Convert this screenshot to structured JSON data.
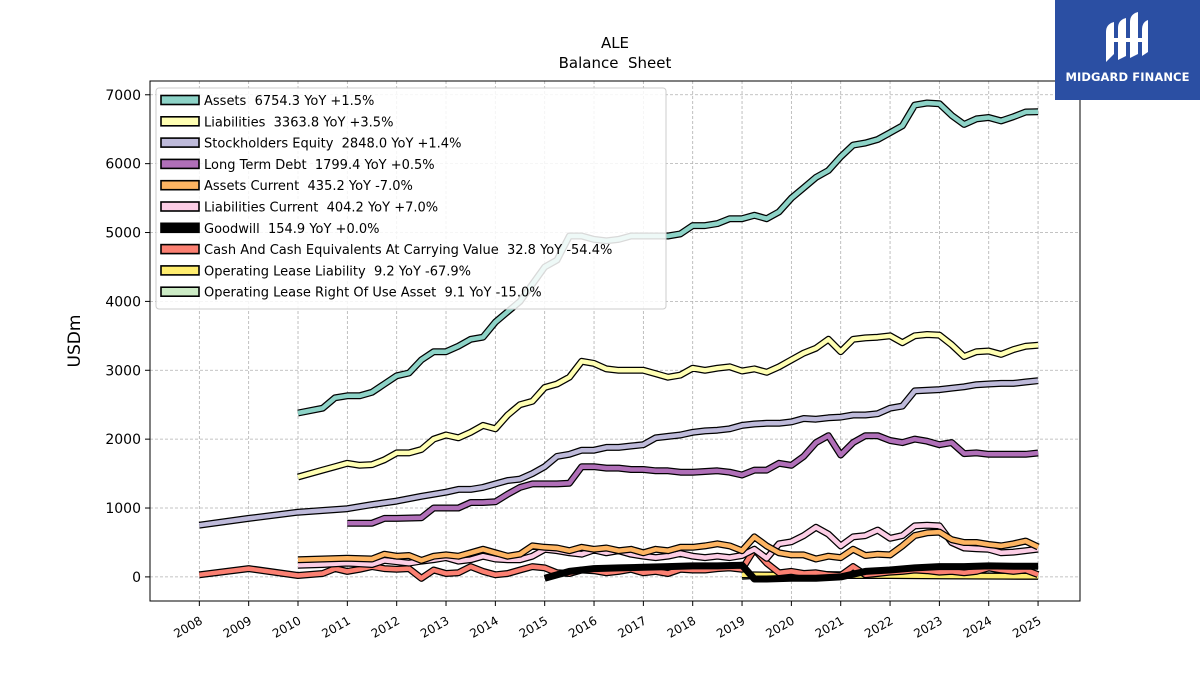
{
  "brand": {
    "name": "MIDGARD FINANCE"
  },
  "chart_data": {
    "type": "line",
    "title": "ALE",
    "subtitle": "Balance  Sheet",
    "xlabel": "",
    "ylabel": "USDm",
    "xlim": [
      2007.0,
      2025.85
    ],
    "ylim": [
      -350,
      7200
    ],
    "x_ticks": [
      "2008",
      "2009",
      "2010",
      "2011",
      "2012",
      "2013",
      "2014",
      "2015",
      "2016",
      "2017",
      "2018",
      "2019",
      "2020",
      "2021",
      "2022",
      "2023",
      "2024",
      "2025"
    ],
    "y_ticks": [
      "0",
      "1000",
      "2000",
      "3000",
      "4000",
      "5000",
      "6000",
      "7000"
    ],
    "grid": true,
    "legend_position": "top-left",
    "series": [
      {
        "name": "Assets  6754.3 YoY +1.5%",
        "color": "#8dd3c7",
        "x": [
          2010.0,
          2010.5,
          2010.75,
          2011.0,
          2011.25,
          2011.5,
          2011.75,
          2012.0,
          2012.25,
          2012.5,
          2012.75,
          2013.0,
          2013.25,
          2013.5,
          2013.75,
          2014.0,
          2014.25,
          2014.5,
          2014.75,
          2015.0,
          2015.25,
          2015.5,
          2015.75,
          2016.0,
          2016.25,
          2016.5,
          2016.75,
          2017.0,
          2017.25,
          2017.5,
          2017.75,
          2018.0,
          2018.25,
          2018.5,
          2018.75,
          2019.0,
          2019.25,
          2019.5,
          2019.75,
          2020.0,
          2020.25,
          2020.5,
          2020.75,
          2021.0,
          2021.25,
          2021.5,
          2021.75,
          2022.0,
          2022.25,
          2022.5,
          2022.75,
          2023.0,
          2023.25,
          2023.5,
          2023.75,
          2024.0,
          2024.25,
          2024.5,
          2024.75,
          2025.0
        ],
        "y": [
          2380,
          2450,
          2600,
          2630,
          2630,
          2680,
          2800,
          2920,
          2960,
          3150,
          3270,
          3270,
          3350,
          3450,
          3480,
          3700,
          3850,
          4000,
          4250,
          4500,
          4600,
          4950,
          4950,
          4900,
          4880,
          4900,
          4950,
          4950,
          4950,
          4950,
          4980,
          5100,
          5100,
          5130,
          5200,
          5200,
          5250,
          5200,
          5300,
          5500,
          5650,
          5800,
          5900,
          6100,
          6270,
          6300,
          6350,
          6450,
          6550,
          6850,
          6880,
          6870,
          6700,
          6570,
          6650,
          6670,
          6620,
          6680,
          6750,
          6754
        ]
      },
      {
        "name": "Liabilities  3363.8 YoY +3.5%",
        "color": "#ffffb3",
        "x": [
          2010.0,
          2010.5,
          2010.75,
          2011.0,
          2011.25,
          2011.5,
          2011.75,
          2012.0,
          2012.25,
          2012.5,
          2012.75,
          2013.0,
          2013.25,
          2013.5,
          2013.75,
          2014.0,
          2014.25,
          2014.5,
          2014.75,
          2015.0,
          2015.25,
          2015.5,
          2015.75,
          2016.0,
          2016.25,
          2016.5,
          2016.75,
          2017.0,
          2017.25,
          2017.5,
          2017.75,
          2018.0,
          2018.25,
          2018.5,
          2018.75,
          2019.0,
          2019.25,
          2019.5,
          2019.75,
          2020.0,
          2020.25,
          2020.5,
          2020.75,
          2021.0,
          2021.25,
          2021.5,
          2021.75,
          2022.0,
          2022.25,
          2022.5,
          2022.75,
          2023.0,
          2023.25,
          2023.5,
          2023.75,
          2024.0,
          2024.25,
          2024.5,
          2024.75,
          2025.0
        ],
        "y": [
          1450,
          1550,
          1600,
          1650,
          1620,
          1630,
          1700,
          1800,
          1800,
          1850,
          2000,
          2060,
          2020,
          2100,
          2200,
          2150,
          2350,
          2500,
          2550,
          2750,
          2800,
          2900,
          3130,
          3100,
          3020,
          3000,
          3000,
          3000,
          2950,
          2900,
          2930,
          3030,
          3000,
          3030,
          3050,
          2990,
          3020,
          2970,
          3050,
          3150,
          3250,
          3320,
          3450,
          3270,
          3450,
          3470,
          3480,
          3500,
          3400,
          3500,
          3520,
          3510,
          3370,
          3200,
          3270,
          3280,
          3230,
          3300,
          3350,
          3364
        ]
      },
      {
        "name": "Stockholders Equity  2848.0 YoY +1.4%",
        "color": "#bebada",
        "x": [
          2008.0,
          2009.0,
          2010.0,
          2011.0,
          2011.5,
          2012.0,
          2012.5,
          2013.0,
          2013.25,
          2013.5,
          2013.75,
          2014.0,
          2014.25,
          2014.5,
          2014.75,
          2015.0,
          2015.25,
          2015.5,
          2015.75,
          2016.0,
          2016.25,
          2016.5,
          2016.75,
          2017.0,
          2017.25,
          2017.5,
          2017.75,
          2018.0,
          2018.25,
          2018.5,
          2018.75,
          2019.0,
          2019.25,
          2019.5,
          2019.75,
          2020.0,
          2020.25,
          2020.5,
          2020.75,
          2021.0,
          2021.25,
          2021.5,
          2021.75,
          2022.0,
          2022.25,
          2022.5,
          2022.75,
          2023.0,
          2023.25,
          2023.5,
          2023.75,
          2024.0,
          2024.25,
          2024.5,
          2024.75,
          2025.0
        ],
        "y": [
          750,
          850,
          940,
          990,
          1050,
          1100,
          1170,
          1230,
          1270,
          1270,
          1300,
          1350,
          1400,
          1420,
          1500,
          1600,
          1750,
          1780,
          1840,
          1840,
          1880,
          1880,
          1900,
          1920,
          2020,
          2040,
          2060,
          2100,
          2120,
          2130,
          2150,
          2200,
          2220,
          2230,
          2230,
          2250,
          2300,
          2290,
          2310,
          2320,
          2350,
          2350,
          2370,
          2450,
          2480,
          2700,
          2710,
          2720,
          2740,
          2760,
          2790,
          2800,
          2810,
          2810,
          2830,
          2848
        ]
      },
      {
        "name": "Long Term Debt  1799.4 YoY +0.5%",
        "color": "#b06fb8",
        "x": [
          2011.0,
          2011.5,
          2011.75,
          2012.0,
          2012.5,
          2012.75,
          2013.0,
          2013.25,
          2013.5,
          2013.75,
          2014.0,
          2014.25,
          2014.5,
          2014.75,
          2015.0,
          2015.25,
          2015.5,
          2015.75,
          2016.0,
          2016.25,
          2016.5,
          2016.75,
          2017.0,
          2017.25,
          2017.5,
          2017.75,
          2018.0,
          2018.25,
          2018.5,
          2018.75,
          2019.0,
          2019.25,
          2019.5,
          2019.75,
          2020.0,
          2020.25,
          2020.5,
          2020.75,
          2021.0,
          2021.25,
          2021.5,
          2021.75,
          2022.0,
          2022.25,
          2022.5,
          2022.75,
          2023.0,
          2023.25,
          2023.5,
          2023.75,
          2024.0,
          2024.25,
          2024.5,
          2024.75,
          2025.0
        ],
        "y": [
          780,
          780,
          850,
          850,
          860,
          1000,
          1000,
          1000,
          1080,
          1080,
          1090,
          1200,
          1300,
          1350,
          1350,
          1350,
          1360,
          1600,
          1600,
          1580,
          1580,
          1560,
          1560,
          1540,
          1540,
          1520,
          1520,
          1530,
          1540,
          1520,
          1480,
          1550,
          1550,
          1650,
          1620,
          1750,
          1950,
          2050,
          1770,
          1950,
          2050,
          2050,
          1980,
          1950,
          2000,
          1970,
          1920,
          1950,
          1790,
          1800,
          1780,
          1780,
          1780,
          1780,
          1799
        ]
      },
      {
        "name": "Assets Current  435.2 YoY -7.0%",
        "color": "#fdb462",
        "x": [
          2010.0,
          2011.0,
          2011.5,
          2011.75,
          2012.0,
          2012.25,
          2012.5,
          2012.75,
          2013.0,
          2013.25,
          2013.5,
          2013.75,
          2014.0,
          2014.25,
          2014.5,
          2014.75,
          2015.0,
          2015.25,
          2015.5,
          2015.75,
          2016.0,
          2016.25,
          2016.5,
          2016.75,
          2017.0,
          2017.25,
          2017.5,
          2017.75,
          2018.0,
          2018.25,
          2018.5,
          2018.75,
          2019.0,
          2019.25,
          2019.5,
          2019.75,
          2020.0,
          2020.25,
          2020.5,
          2020.75,
          2021.0,
          2021.25,
          2021.5,
          2021.75,
          2022.0,
          2022.25,
          2022.5,
          2022.75,
          2023.0,
          2023.25,
          2023.5,
          2023.75,
          2024.0,
          2024.25,
          2024.5,
          2024.75,
          2025.0
        ],
        "y": [
          250,
          270,
          260,
          330,
          300,
          310,
          240,
          300,
          320,
          300,
          350,
          400,
          350,
          300,
          330,
          450,
          430,
          420,
          380,
          430,
          400,
          420,
          380,
          400,
          350,
          400,
          380,
          430,
          430,
          450,
          480,
          450,
          380,
          580,
          450,
          350,
          320,
          320,
          260,
          300,
          280,
          400,
          310,
          330,
          320,
          450,
          600,
          640,
          650,
          540,
          500,
          500,
          470,
          450,
          480,
          520,
          435
        ]
      },
      {
        "name": "Liabilities Current  404.2 YoY +7.0%",
        "color": "#fccde5",
        "x": [
          2010.0,
          2010.5,
          2011.0,
          2011.5,
          2011.75,
          2012.0,
          2012.25,
          2012.5,
          2012.75,
          2013.0,
          2013.25,
          2013.5,
          2013.75,
          2014.0,
          2014.25,
          2014.5,
          2014.75,
          2015.0,
          2015.25,
          2015.5,
          2015.75,
          2016.0,
          2016.25,
          2016.5,
          2016.75,
          2017.0,
          2017.25,
          2017.5,
          2017.75,
          2018.0,
          2018.25,
          2018.5,
          2018.75,
          2019.0,
          2019.25,
          2019.5,
          2019.75,
          2020.0,
          2020.25,
          2020.5,
          2020.75,
          2021.0,
          2021.25,
          2021.5,
          2021.75,
          2022.0,
          2022.25,
          2022.5,
          2022.75,
          2023.0,
          2023.25,
          2023.5,
          2023.75,
          2024.0,
          2024.25,
          2024.5,
          2024.75,
          2025.0
        ],
        "y": [
          170,
          180,
          200,
          180,
          240,
          220,
          200,
          230,
          250,
          280,
          230,
          250,
          300,
          260,
          250,
          250,
          300,
          400,
          380,
          350,
          330,
          390,
          350,
          380,
          330,
          300,
          280,
          300,
          340,
          300,
          280,
          300,
          280,
          310,
          400,
          270,
          480,
          510,
          600,
          720,
          620,
          450,
          580,
          600,
          680,
          560,
          600,
          740,
          750,
          740,
          500,
          420,
          410,
          400,
          350,
          360,
          380,
          404
        ]
      },
      {
        "name": "Goodwill  154.9 YoY +0.0%",
        "color": "#000000",
        "x": [
          2015.0,
          2015.5,
          2016.0,
          2016.5,
          2017.0,
          2017.5,
          2018.0,
          2018.5,
          2019.0,
          2019.25,
          2019.5,
          2020.0,
          2020.5,
          2021.0,
          2021.5,
          2022.0,
          2022.5,
          2023.0,
          2023.5,
          2024.0,
          2024.5,
          2025.0
        ],
        "y": [
          -20,
          80,
          120,
          130,
          140,
          150,
          160,
          160,
          170,
          -30,
          -30,
          -20,
          -20,
          0,
          80,
          100,
          130,
          150,
          150,
          160,
          155,
          155
        ]
      },
      {
        "name": "Cash And Cash Equivalents At Carrying Value  32.8 YoY -54.4%",
        "color": "#fb8072",
        "x": [
          2008.0,
          2009.0,
          2010.0,
          2010.5,
          2010.75,
          2011.0,
          2011.25,
          2011.5,
          2011.75,
          2012.0,
          2012.25,
          2012.5,
          2012.75,
          2013.0,
          2013.25,
          2013.5,
          2013.75,
          2014.0,
          2014.25,
          2014.5,
          2014.75,
          2015.0,
          2015.25,
          2015.5,
          2015.75,
          2016.0,
          2016.25,
          2016.5,
          2016.75,
          2017.0,
          2017.25,
          2017.5,
          2017.75,
          2018.0,
          2018.25,
          2018.5,
          2018.75,
          2019.0,
          2019.25,
          2019.5,
          2019.75,
          2020.0,
          2020.25,
          2020.5,
          2020.75,
          2021.0,
          2021.25,
          2021.5,
          2021.75,
          2022.0,
          2022.25,
          2022.5,
          2022.75,
          2023.0,
          2023.25,
          2023.5,
          2023.75,
          2024.0,
          2024.25,
          2024.5,
          2024.75,
          2025.0
        ],
        "y": [
          30,
          120,
          20,
          50,
          120,
          80,
          110,
          150,
          120,
          110,
          120,
          -20,
          100,
          50,
          60,
          150,
          80,
          30,
          50,
          100,
          150,
          130,
          60,
          50,
          100,
          90,
          60,
          80,
          110,
          60,
          80,
          50,
          110,
          100,
          100,
          120,
          130,
          110,
          400,
          200,
          60,
          80,
          50,
          60,
          30,
          20,
          150,
          30,
          50,
          70,
          80,
          100,
          90,
          70,
          80,
          60,
          80,
          130,
          100,
          80,
          100,
          33
        ]
      },
      {
        "name": "Operating Lease Liability  9.2 YoY -67.9%",
        "color": "#ffed6f",
        "x": [
          2019.0,
          2020.0,
          2021.0,
          2022.0,
          2023.0,
          2024.0,
          2025.0
        ],
        "y": [
          30,
          25,
          20,
          20,
          15,
          12,
          9
        ]
      },
      {
        "name": "Operating Lease Right Of Use Asset  9.1 YoY -15.0%",
        "color": "#ccebc5",
        "x": [
          2019.0,
          2020.0,
          2021.0,
          2022.0,
          2023.0,
          2024.0,
          2025.0
        ],
        "y": [
          10,
          40,
          30,
          25,
          20,
          15,
          9
        ]
      }
    ]
  }
}
